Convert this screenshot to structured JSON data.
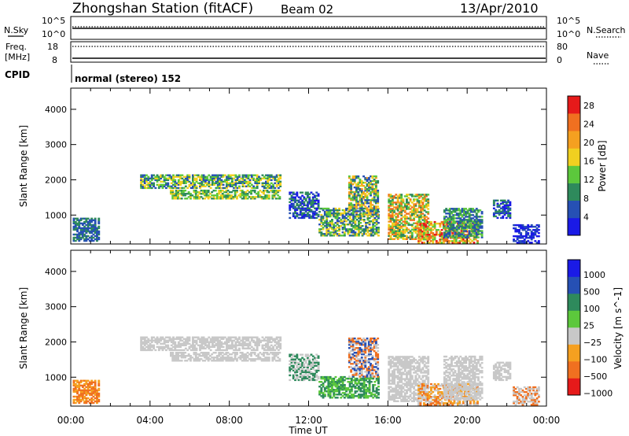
{
  "header": {
    "title": "Zhongshan Station (fitACF)",
    "beam": "Beam 02",
    "date": "13/Apr/2010"
  },
  "strip1": {
    "left_label": "N.Sky",
    "right_label": "N.Search",
    "left_ticks": [
      "10^5",
      "10^0"
    ],
    "right_ticks": [
      "10^5",
      "10^0"
    ]
  },
  "strip2": {
    "left_label_line1": "Freq.",
    "left_label_line2": "[MHz]",
    "right_label": "Nave",
    "left_ticks": [
      "18",
      "8"
    ],
    "right_ticks": [
      "80",
      "0"
    ]
  },
  "cpid": {
    "label": "CPID",
    "value": "normal (stereo) 152"
  },
  "xaxis": {
    "ticks": [
      "00:00",
      "04:00",
      "08:00",
      "12:00",
      "16:00",
      "20:00",
      "00:00"
    ],
    "label": "Time UT"
  },
  "colors": {
    "power": [
      "#1a1ae6",
      "#2650b4",
      "#2e8a5c",
      "#5cc83c",
      "#f0d020",
      "#f5a020",
      "#f07020",
      "#e61a1a"
    ],
    "velocity": [
      "#e61a1a",
      "#f07020",
      "#f5a020",
      "#c8c8c8",
      "#5cc83c",
      "#2e8a5c",
      "#2650b4",
      "#1a1ae6"
    ]
  },
  "chart_data": [
    {
      "type": "heatmap",
      "name": "power",
      "ylabel": "Slant Range [km]",
      "xlabel": "Time UT",
      "xlim": [
        0,
        24
      ],
      "ylim": [
        180,
        4600
      ],
      "yticks": [
        "1000",
        "2000",
        "3000",
        "4000"
      ],
      "colorbar": {
        "label": "Power [dB]",
        "ticks": [
          "4",
          "8",
          "12",
          "16",
          "20",
          "24",
          "28"
        ],
        "range": [
          0,
          30
        ]
      },
      "regions": [
        {
          "t0": 3.5,
          "t1": 10.6,
          "r0": 1750,
          "r1": 2150,
          "colors": [
            1,
            2,
            3,
            4
          ]
        },
        {
          "t0": 5.0,
          "t1": 10.5,
          "r0": 1450,
          "r1": 1700,
          "colors": [
            2,
            3,
            4
          ]
        },
        {
          "t0": 0.1,
          "t1": 1.4,
          "r0": 250,
          "r1": 900,
          "colors": [
            1,
            2
          ]
        },
        {
          "t0": 11.0,
          "t1": 12.5,
          "r0": 900,
          "r1": 1650,
          "colors": [
            0,
            1,
            2
          ]
        },
        {
          "t0": 12.5,
          "t1": 15.5,
          "r0": 400,
          "r1": 1200,
          "colors": [
            1,
            2,
            3,
            4
          ]
        },
        {
          "t0": 14.0,
          "t1": 15.5,
          "r0": 1000,
          "r1": 2100,
          "colors": [
            1,
            2,
            3,
            4,
            5
          ]
        },
        {
          "t0": 16.0,
          "t1": 18.0,
          "r0": 300,
          "r1": 1600,
          "colors": [
            2,
            3,
            4,
            5,
            6
          ]
        },
        {
          "t0": 17.5,
          "t1": 20.5,
          "r0": 200,
          "r1": 800,
          "colors": [
            3,
            4,
            5,
            6,
            7
          ]
        },
        {
          "t0": 18.8,
          "t1": 20.7,
          "r0": 350,
          "r1": 1200,
          "colors": [
            1,
            2,
            3
          ]
        },
        {
          "t0": 21.3,
          "t1": 22.2,
          "r0": 900,
          "r1": 1400,
          "colors": [
            0,
            1,
            2
          ]
        },
        {
          "t0": 22.3,
          "t1": 23.6,
          "r0": 200,
          "r1": 700,
          "colors": [
            0,
            1
          ]
        }
      ]
    },
    {
      "type": "heatmap",
      "name": "velocity",
      "ylabel": "Slant Range [km]",
      "xlabel": "Time UT",
      "xlim": [
        0,
        24
      ],
      "ylim": [
        180,
        4600
      ],
      "yticks": [
        "1000",
        "2000",
        "3000",
        "4000"
      ],
      "colorbar": {
        "label": "Velocity [m s^-1]",
        "ticks": [
          "1000",
          "500",
          "100",
          "25",
          "−25",
          "−100",
          "−500",
          "−1000"
        ]
      },
      "regions": [
        {
          "t0": 3.5,
          "t1": 10.6,
          "r0": 1750,
          "r1": 2150,
          "colors": [
            3
          ]
        },
        {
          "t0": 5.0,
          "t1": 10.5,
          "r0": 1450,
          "r1": 1700,
          "colors": [
            3
          ]
        },
        {
          "t0": 0.1,
          "t1": 1.4,
          "r0": 250,
          "r1": 900,
          "colors": [
            1,
            2
          ]
        },
        {
          "t0": 11.0,
          "t1": 12.5,
          "r0": 900,
          "r1": 1650,
          "colors": [
            5,
            3
          ]
        },
        {
          "t0": 12.5,
          "t1": 15.5,
          "r0": 400,
          "r1": 1000,
          "colors": [
            5,
            4
          ]
        },
        {
          "t0": 14.0,
          "t1": 15.5,
          "r0": 1000,
          "r1": 2100,
          "colors": [
            3,
            6,
            1
          ]
        },
        {
          "t0": 16.0,
          "t1": 18.0,
          "r0": 300,
          "r1": 1600,
          "colors": [
            3
          ]
        },
        {
          "t0": 17.5,
          "t1": 20.5,
          "r0": 200,
          "r1": 800,
          "colors": [
            3,
            1,
            2
          ]
        },
        {
          "t0": 18.8,
          "t1": 20.7,
          "r0": 350,
          "r1": 1600,
          "colors": [
            3
          ]
        },
        {
          "t0": 21.3,
          "t1": 22.2,
          "r0": 900,
          "r1": 1400,
          "colors": [
            3
          ]
        },
        {
          "t0": 22.3,
          "t1": 23.6,
          "r0": 200,
          "r1": 700,
          "colors": [
            3,
            1
          ]
        }
      ]
    }
  ]
}
